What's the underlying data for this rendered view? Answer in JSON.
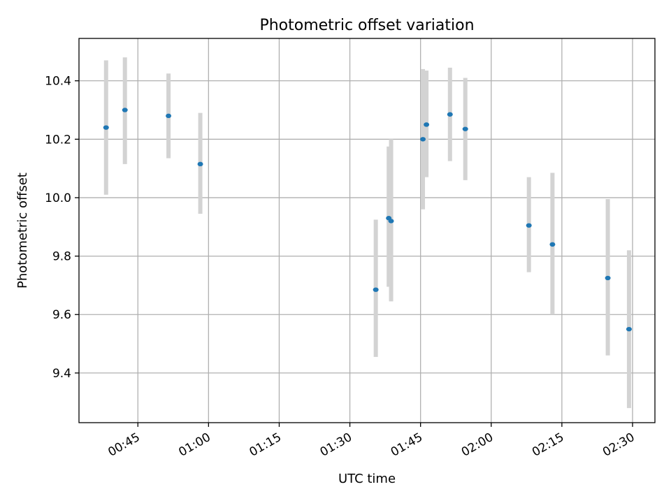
{
  "chart_data": {
    "type": "scatter",
    "title": "Photometric offset variation",
    "xlabel": "UTC time",
    "ylabel": "Photometric offset",
    "x_unit": "time of day (HH:MM)",
    "xlim": [
      "00:32:30",
      "02:34:45"
    ],
    "ylim": [
      9.23,
      10.545
    ],
    "x_ticks": [
      "00:45",
      "01:00",
      "01:15",
      "01:30",
      "01:45",
      "02:00",
      "02:15",
      "02:30"
    ],
    "y_ticks": [
      9.4,
      9.6,
      9.8,
      10.0,
      10.2,
      10.4
    ],
    "y_tick_labels": [
      "9.4",
      "9.6",
      "9.8",
      "10.0",
      "10.2",
      "10.4"
    ],
    "grid": true,
    "legend": "none",
    "points": [
      {
        "x": "00:38:15",
        "y": 10.24,
        "yerr_low": 10.01,
        "yerr_high": 10.47
      },
      {
        "x": "00:42:15",
        "y": 10.3,
        "yerr_low": 10.115,
        "yerr_high": 10.48
      },
      {
        "x": "00:51:30",
        "y": 10.28,
        "yerr_low": 10.135,
        "yerr_high": 10.425
      },
      {
        "x": "00:58:15",
        "y": 10.115,
        "yerr_low": 9.945,
        "yerr_high": 10.29
      },
      {
        "x": "01:35:30",
        "y": 9.685,
        "yerr_low": 9.455,
        "yerr_high": 9.925
      },
      {
        "x": "01:38:15",
        "y": 9.93,
        "yerr_low": 9.695,
        "yerr_high": 10.175
      },
      {
        "x": "01:38:45",
        "y": 9.92,
        "yerr_low": 9.645,
        "yerr_high": 10.2
      },
      {
        "x": "01:45:30",
        "y": 10.2,
        "yerr_low": 9.96,
        "yerr_high": 10.44
      },
      {
        "x": "01:46:15",
        "y": 10.25,
        "yerr_low": 10.07,
        "yerr_high": 10.435
      },
      {
        "x": "01:51:15",
        "y": 10.285,
        "yerr_low": 10.125,
        "yerr_high": 10.445
      },
      {
        "x": "01:54:30",
        "y": 10.235,
        "yerr_low": 10.06,
        "yerr_high": 10.41
      },
      {
        "x": "02:08:00",
        "y": 9.905,
        "yerr_low": 9.745,
        "yerr_high": 10.07
      },
      {
        "x": "02:13:00",
        "y": 9.84,
        "yerr_low": 9.6,
        "yerr_high": 10.085
      },
      {
        "x": "02:24:45",
        "y": 9.725,
        "yerr_low": 9.46,
        "yerr_high": 9.995
      },
      {
        "x": "02:29:15",
        "y": 9.55,
        "yerr_low": 9.28,
        "yerr_high": 9.82
      }
    ],
    "colors": {
      "marker": "#1f77b4",
      "errorbar": "#d3d3d3",
      "grid": "#b0b0b0",
      "axes": "#000000"
    }
  }
}
